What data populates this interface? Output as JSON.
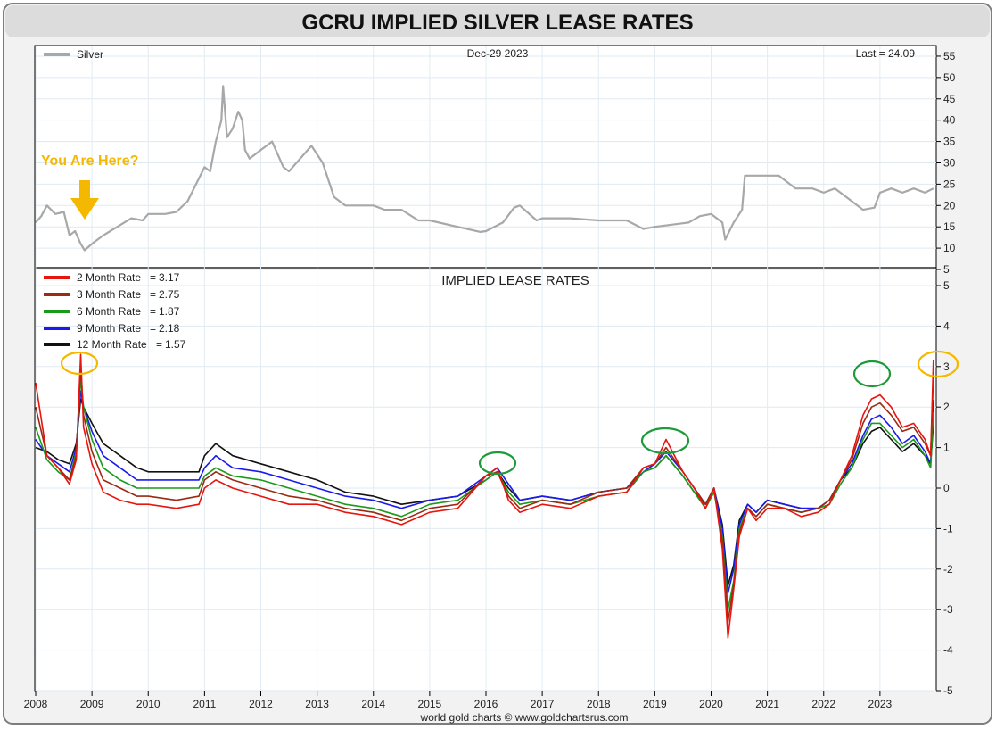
{
  "title": "GCRU IMPLIED SILVER LEASE RATES",
  "footer": "world gold charts © www.goldchartsrus.com",
  "colors": {
    "silver": "#a8a8a8",
    "rate_2m": "#e8140e",
    "rate_3m": "#9b2a12",
    "rate_6m": "#1a9a1a",
    "rate_9m": "#1a1aee",
    "rate_12m": "#111111",
    "highlight_yellow": "#f5b800",
    "highlight_green": "#1e9a3a"
  },
  "chart_data": [
    {
      "type": "line",
      "panel": "top",
      "date_label": "Dec-29  2023",
      "last_label": "Last = 24.09",
      "annotation": "You Are Here?",
      "annotation_icon": "down-arrow-icon",
      "y_ticks": [
        5,
        10,
        15,
        20,
        25,
        30,
        35,
        40,
        45,
        50,
        55
      ],
      "ylim": [
        5,
        57.5
      ],
      "xlim": [
        2008.0,
        2024.0
      ],
      "grid": true,
      "legend_placement": "top-left",
      "series": [
        {
          "name": "Silver",
          "color_key": "silver",
          "x": [
            2008.0,
            2008.1,
            2008.2,
            2008.35,
            2008.5,
            2008.6,
            2008.7,
            2008.8,
            2008.87,
            2009.0,
            2009.2,
            2009.45,
            2009.7,
            2009.9,
            2010.0,
            2010.3,
            2010.5,
            2010.7,
            2010.85,
            2011.0,
            2011.1,
            2011.2,
            2011.3,
            2011.33,
            2011.4,
            2011.5,
            2011.6,
            2011.67,
            2011.72,
            2011.8,
            2012.0,
            2012.2,
            2012.4,
            2012.5,
            2012.7,
            2012.9,
            2013.1,
            2013.3,
            2013.5,
            2013.7,
            2014.0,
            2014.2,
            2014.5,
            2014.8,
            2015.0,
            2015.5,
            2015.9,
            2016.0,
            2016.3,
            2016.5,
            2016.6,
            2016.9,
            2017.0,
            2017.5,
            2018.0,
            2018.5,
            2018.8,
            2019.0,
            2019.3,
            2019.6,
            2019.8,
            2020.0,
            2020.2,
            2020.25,
            2020.4,
            2020.55,
            2020.6,
            2020.8,
            2021.0,
            2021.2,
            2021.5,
            2021.8,
            2022.0,
            2022.2,
            2022.5,
            2022.7,
            2022.9,
            2023.0,
            2023.2,
            2023.4,
            2023.6,
            2023.8,
            2023.95
          ],
          "y": [
            16,
            17.5,
            20,
            18,
            18.5,
            13,
            14,
            11,
            9.5,
            11,
            13,
            15,
            17,
            16.5,
            18,
            18,
            18.5,
            21,
            25,
            29,
            28,
            35,
            40,
            48,
            36,
            38,
            42,
            40,
            33,
            31,
            33,
            35,
            29,
            28,
            31,
            34,
            30,
            22,
            20,
            20,
            20,
            19,
            19,
            16.5,
            16.5,
            15,
            13.8,
            14,
            16,
            19.5,
            20,
            16.5,
            17,
            17,
            16.5,
            16.5,
            14.5,
            15,
            15.5,
            16,
            17.5,
            18,
            16,
            12,
            16,
            19,
            27,
            27,
            27,
            27,
            24,
            24,
            23,
            24,
            21,
            19,
            19.5,
            23,
            24,
            23,
            24,
            23,
            24
          ]
        }
      ]
    },
    {
      "type": "line",
      "panel": "bottom",
      "title": "IMPLIED LEASE RATES",
      "y_ticks": [
        -5,
        -4,
        -3,
        -2,
        -1,
        0,
        1,
        2,
        3,
        4,
        5
      ],
      "ylim": [
        -5,
        5
      ],
      "xlim": [
        2008.0,
        2024.0
      ],
      "x_ticks": [
        "2008",
        "2009",
        "2010",
        "2011",
        "2012",
        "2013",
        "2014",
        "2015",
        "2016",
        "2017",
        "2018",
        "2019",
        "2020",
        "2021",
        "2022",
        "2023"
      ],
      "grid": true,
      "legend_placement": "top-left",
      "series": [
        {
          "name": "2 Month Rate",
          "last": "3.17",
          "color_key": "rate_2m",
          "x": [
            2008.0,
            2008.2,
            2008.4,
            2008.6,
            2008.72,
            2008.8,
            2008.85,
            2009.0,
            2009.2,
            2009.5,
            2009.8,
            2010.0,
            2010.5,
            2010.9,
            2011.0,
            2011.2,
            2011.5,
            2012.0,
            2012.5,
            2013.0,
            2013.5,
            2014.0,
            2014.5,
            2015.0,
            2015.5,
            2016.0,
            2016.2,
            2016.4,
            2016.6,
            2017.0,
            2017.5,
            2018.0,
            2018.5,
            2018.8,
            2019.0,
            2019.2,
            2019.5,
            2019.7,
            2019.9,
            2020.05,
            2020.2,
            2020.3,
            2020.4,
            2020.5,
            2020.65,
            2020.8,
            2021.0,
            2021.3,
            2021.6,
            2021.9,
            2022.1,
            2022.3,
            2022.5,
            2022.7,
            2022.85,
            2023.0,
            2023.2,
            2023.4,
            2023.6,
            2023.8,
            2023.9,
            2023.95
          ],
          "y": [
            2.6,
            0.8,
            0.5,
            0.1,
            0.7,
            3.3,
            1.5,
            0.6,
            -0.1,
            -0.3,
            -0.4,
            -0.4,
            -0.5,
            -0.4,
            0.0,
            0.2,
            0.0,
            -0.2,
            -0.4,
            -0.4,
            -0.6,
            -0.7,
            -0.9,
            -0.6,
            -0.5,
            0.3,
            0.5,
            -0.3,
            -0.6,
            -0.4,
            -0.5,
            -0.2,
            -0.1,
            0.5,
            0.6,
            1.2,
            0.4,
            0.0,
            -0.5,
            0.0,
            -1.5,
            -3.7,
            -2.5,
            -1.2,
            -0.5,
            -0.8,
            -0.5,
            -0.5,
            -0.7,
            -0.6,
            -0.4,
            0.2,
            0.8,
            1.8,
            2.2,
            2.3,
            2.0,
            1.5,
            1.6,
            1.2,
            0.8,
            3.17
          ]
        },
        {
          "name": "3 Month Rate",
          "last": "2.75",
          "color_key": "rate_3m",
          "x": [
            2008.0,
            2008.2,
            2008.4,
            2008.6,
            2008.72,
            2008.8,
            2008.85,
            2009.0,
            2009.2,
            2009.5,
            2009.8,
            2010.0,
            2010.5,
            2010.9,
            2011.0,
            2011.2,
            2011.5,
            2012.0,
            2012.5,
            2013.0,
            2013.5,
            2014.0,
            2014.5,
            2015.0,
            2015.5,
            2016.0,
            2016.2,
            2016.4,
            2016.6,
            2017.0,
            2017.5,
            2018.0,
            2018.5,
            2018.8,
            2019.0,
            2019.2,
            2019.5,
            2019.7,
            2019.9,
            2020.05,
            2020.2,
            2020.3,
            2020.4,
            2020.5,
            2020.65,
            2020.8,
            2021.0,
            2021.3,
            2021.6,
            2021.9,
            2022.1,
            2022.3,
            2022.5,
            2022.7,
            2022.85,
            2023.0,
            2023.2,
            2023.4,
            2023.6,
            2023.8,
            2023.9,
            2023.95
          ],
          "y": [
            2.0,
            0.8,
            0.5,
            0.2,
            0.8,
            3.0,
            1.8,
            0.9,
            0.2,
            0.0,
            -0.2,
            -0.2,
            -0.3,
            -0.2,
            0.2,
            0.4,
            0.2,
            0.0,
            -0.2,
            -0.3,
            -0.5,
            -0.6,
            -0.8,
            -0.5,
            -0.4,
            0.3,
            0.4,
            -0.2,
            -0.5,
            -0.3,
            -0.4,
            -0.1,
            0.0,
            0.5,
            0.6,
            1.0,
            0.4,
            0.0,
            -0.4,
            0.0,
            -1.3,
            -3.3,
            -2.4,
            -1.1,
            -0.5,
            -0.7,
            -0.4,
            -0.5,
            -0.6,
            -0.5,
            -0.3,
            0.2,
            0.7,
            1.6,
            2.0,
            2.1,
            1.8,
            1.4,
            1.5,
            1.1,
            0.8,
            2.75
          ]
        },
        {
          "name": "6 Month Rate",
          "last": "1.87",
          "color_key": "rate_6m",
          "x": [
            2008.0,
            2008.2,
            2008.4,
            2008.6,
            2008.72,
            2008.8,
            2008.85,
            2009.0,
            2009.2,
            2009.5,
            2009.8,
            2010.0,
            2010.5,
            2010.9,
            2011.0,
            2011.2,
            2011.5,
            2012.0,
            2012.5,
            2013.0,
            2013.5,
            2014.0,
            2014.5,
            2015.0,
            2015.5,
            2016.0,
            2016.2,
            2016.4,
            2016.6,
            2017.0,
            2017.5,
            2018.0,
            2018.5,
            2018.8,
            2019.0,
            2019.2,
            2019.5,
            2019.7,
            2019.9,
            2020.05,
            2020.2,
            2020.3,
            2020.4,
            2020.5,
            2020.65,
            2020.8,
            2021.0,
            2021.3,
            2021.6,
            2021.9,
            2022.1,
            2022.3,
            2022.5,
            2022.7,
            2022.85,
            2023.0,
            2023.2,
            2023.4,
            2023.6,
            2023.8,
            2023.9,
            2023.95
          ],
          "y": [
            1.5,
            0.7,
            0.4,
            0.2,
            0.9,
            2.7,
            2.0,
            1.2,
            0.5,
            0.2,
            0.0,
            0.0,
            0.0,
            0.0,
            0.3,
            0.5,
            0.3,
            0.2,
            0.0,
            -0.2,
            -0.4,
            -0.5,
            -0.7,
            -0.4,
            -0.3,
            0.2,
            0.4,
            -0.1,
            -0.4,
            -0.3,
            -0.4,
            -0.2,
            -0.1,
            0.4,
            0.5,
            0.8,
            0.3,
            -0.1,
            -0.5,
            -0.1,
            -1.2,
            -3.0,
            -2.3,
            -1.0,
            -0.5,
            -0.7,
            -0.4,
            -0.5,
            -0.6,
            -0.5,
            -0.4,
            0.1,
            0.5,
            1.2,
            1.6,
            1.6,
            1.3,
            1.0,
            1.2,
            0.8,
            0.5,
            1.87
          ]
        },
        {
          "name": "9 Month Rate",
          "last": "2.18",
          "color_key": "rate_9m",
          "x": [
            2008.0,
            2008.2,
            2008.4,
            2008.6,
            2008.72,
            2008.8,
            2008.85,
            2009.0,
            2009.2,
            2009.5,
            2009.8,
            2010.0,
            2010.5,
            2010.9,
            2011.0,
            2011.2,
            2011.5,
            2012.0,
            2012.5,
            2013.0,
            2013.5,
            2014.0,
            2014.5,
            2015.0,
            2015.5,
            2016.0,
            2016.2,
            2016.4,
            2016.6,
            2017.0,
            2017.5,
            2018.0,
            2018.5,
            2018.8,
            2019.0,
            2019.2,
            2019.5,
            2019.7,
            2019.9,
            2020.05,
            2020.2,
            2020.3,
            2020.4,
            2020.5,
            2020.65,
            2020.8,
            2021.0,
            2021.3,
            2021.6,
            2021.9,
            2022.1,
            2022.3,
            2022.5,
            2022.7,
            2022.85,
            2023.0,
            2023.2,
            2023.4,
            2023.6,
            2023.8,
            2023.9,
            2023.95
          ],
          "y": [
            1.2,
            0.8,
            0.6,
            0.4,
            1.0,
            2.4,
            2.0,
            1.4,
            0.8,
            0.5,
            0.2,
            0.2,
            0.2,
            0.2,
            0.5,
            0.8,
            0.5,
            0.4,
            0.2,
            0.0,
            -0.2,
            -0.3,
            -0.5,
            -0.3,
            -0.2,
            0.3,
            0.5,
            0.1,
            -0.3,
            -0.2,
            -0.3,
            -0.1,
            0.0,
            0.4,
            0.6,
            0.9,
            0.4,
            0.0,
            -0.4,
            0.0,
            -1.0,
            -2.6,
            -2.0,
            -0.9,
            -0.4,
            -0.6,
            -0.3,
            -0.4,
            -0.5,
            -0.5,
            -0.3,
            0.2,
            0.6,
            1.3,
            1.7,
            1.8,
            1.5,
            1.1,
            1.3,
            0.9,
            0.6,
            2.18
          ]
        },
        {
          "name": "12 Month Rate",
          "last": "1.57",
          "color_key": "rate_12m",
          "x": [
            2008.0,
            2008.2,
            2008.4,
            2008.6,
            2008.72,
            2008.8,
            2008.85,
            2009.0,
            2009.2,
            2009.5,
            2009.8,
            2010.0,
            2010.5,
            2010.9,
            2011.0,
            2011.2,
            2011.5,
            2012.0,
            2012.5,
            2013.0,
            2013.5,
            2014.0,
            2014.5,
            2015.0,
            2015.5,
            2016.0,
            2016.2,
            2016.4,
            2016.6,
            2017.0,
            2017.5,
            2018.0,
            2018.5,
            2018.8,
            2019.0,
            2019.2,
            2019.5,
            2019.7,
            2019.9,
            2020.05,
            2020.2,
            2020.3,
            2020.4,
            2020.5,
            2020.65,
            2020.8,
            2021.0,
            2021.3,
            2021.6,
            2021.9,
            2022.1,
            2022.3,
            2022.5,
            2022.7,
            2022.85,
            2023.0,
            2023.2,
            2023.4,
            2023.6,
            2023.8,
            2023.9,
            2023.95
          ],
          "y": [
            1.0,
            0.9,
            0.7,
            0.6,
            1.1,
            2.2,
            2.0,
            1.6,
            1.1,
            0.8,
            0.5,
            0.4,
            0.4,
            0.4,
            0.8,
            1.1,
            0.8,
            0.6,
            0.4,
            0.2,
            -0.1,
            -0.2,
            -0.4,
            -0.3,
            -0.2,
            0.2,
            0.4,
            0.0,
            -0.3,
            -0.2,
            -0.3,
            -0.1,
            0.0,
            0.4,
            0.5,
            0.8,
            0.3,
            -0.1,
            -0.4,
            0.0,
            -0.9,
            -2.4,
            -1.9,
            -0.8,
            -0.4,
            -0.6,
            -0.3,
            -0.4,
            -0.5,
            -0.5,
            -0.3,
            0.2,
            0.5,
            1.1,
            1.4,
            1.5,
            1.2,
            0.9,
            1.1,
            0.8,
            0.6,
            1.57
          ]
        }
      ]
    }
  ]
}
